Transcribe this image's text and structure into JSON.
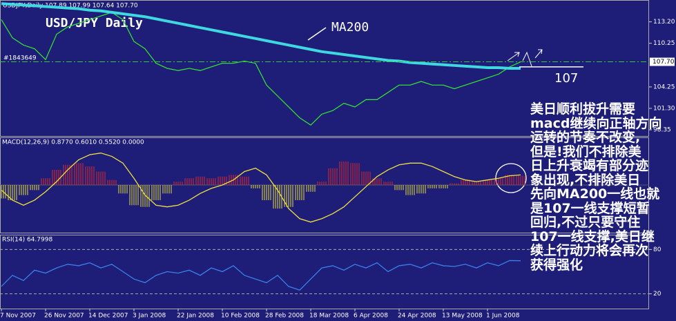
{
  "info": "USDJPY,Daily  107.89 107.99 107.64 107.70",
  "order_label": "#1843649",
  "commentary": [
    "美日顺利拔升需要",
    "macd继续向正轴方向",
    "运转的节奏不改变,",
    "但是!我们不排除美",
    "日上升衰竭有部分迹",
    "象出现,不排除美日",
    "先向MA200一线也就",
    "是107一线支撑短暂",
    "回归,不过只要守住",
    "107一线支撑,美日继",
    "续上行动力将会再次",
    "获得强化"
  ],
  "chart_data": [
    {
      "type": "line",
      "title": "USD/JPY Daily",
      "categories": [
        "7 Nov 2007",
        null,
        null,
        null,
        "26 Nov 2007",
        null,
        null,
        null,
        "14 Dec 2007",
        null,
        null,
        null,
        "3 Jan 2008",
        null,
        null,
        null,
        "22 Jan 2008",
        null,
        null,
        null,
        "10 Feb 2008",
        null,
        null,
        null,
        "28 Feb 2008",
        null,
        null,
        null,
        "18 Mar 2008",
        null,
        null,
        null,
        "6 Apr 2008",
        null,
        null,
        null,
        "24 Apr 2008",
        null,
        null,
        null,
        "13 May 2008",
        null,
        null,
        null,
        "1 Jun 2008",
        null,
        null,
        null
      ],
      "series": [
        {
          "color": "#33dd33",
          "values": [
            113.5,
            111,
            110,
            109.5,
            108,
            111.5,
            112.5,
            113,
            113.5,
            114,
            114.5,
            113.5,
            110.5,
            109.5,
            107.5,
            106.8,
            106.5,
            106.8,
            106.5,
            107,
            107.5,
            107.5,
            107.8,
            107.5,
            104.5,
            103,
            101.5,
            100,
            99,
            100.5,
            101,
            102,
            101.5,
            102.5,
            102.5,
            103.5,
            104.5,
            104.5,
            105,
            104.5,
            104.5,
            104,
            104.5,
            105,
            105.5,
            106,
            107,
            107.7
          ]
        },
        {
          "name": "MA200",
          "color": "#3fd8e0",
          "values": [
            115.7,
            115.6,
            115.5,
            115.4,
            115.3,
            115.2,
            115.1,
            115.0,
            114.8,
            114.7,
            114.5,
            114.3,
            114.1,
            113.9,
            113.6,
            113.3,
            113.0,
            112.7,
            112.4,
            112.1,
            111.8,
            111.5,
            111.2,
            110.9,
            110.6,
            110.3,
            110.0,
            109.7,
            109.4,
            109.1,
            108.9,
            108.7,
            108.5,
            108.3,
            108.1,
            107.9,
            107.8,
            107.6,
            107.5,
            107.4,
            107.3,
            107.2,
            107.1,
            107.0,
            106.9,
            106.9,
            106.8,
            106.8
          ]
        }
      ],
      "ylim": [
        97.5,
        116.2
      ],
      "yticks": [
        {
          "value": 113.2,
          "label": "113.20"
        },
        {
          "value": 110.25,
          "label": "110.25"
        },
        {
          "value": 104.25,
          "label": "104.25"
        },
        {
          "value": 101.3,
          "label": "101.30"
        },
        {
          "value": 98.35,
          "label": "98.35"
        }
      ],
      "current_price": {
        "value": 107.7,
        "label": "107.70"
      },
      "support_level": 107
    },
    {
      "type": "bar",
      "title": "MACD(12,26,9) 0.8770 0.6010 0.5520 0.0000",
      "color_up": "#e02828",
      "color_down": "#e8e030",
      "series": [
        {
          "values": [
            -0.8,
            -0.9,
            -0.6,
            -0.3,
            0.4,
            0.9,
            1.2,
            1.3,
            1.1,
            0.8,
            0.3,
            -0.5,
            -1.2,
            -1.3,
            -0.9,
            -0.5,
            0.2,
            0.4,
            0.5,
            0.4,
            0.5,
            0.6,
            0.5,
            -0.2,
            -0.9,
            -1.4,
            -1.3,
            -0.9,
            -0.4,
            0.2,
            1.0,
            1.4,
            1.3,
            0.8,
            0.4,
            0.2,
            -0.3,
            -0.6,
            -0.5,
            -0.2,
            -0.2,
            0.1,
            0.3,
            0.2,
            0.3,
            0.4,
            0.6,
            0.55
          ]
        },
        {
          "type": "line",
          "color": "#f0e040",
          "values": [
            -0.3,
            -0.9,
            -1.2,
            -0.9,
            -0.4,
            0.2,
            0.9,
            1.5,
            1.8,
            1.9,
            1.7,
            1.3,
            0.4,
            -0.6,
            -1.2,
            -1.3,
            -1.2,
            -0.9,
            -0.5,
            -0.2,
            0.0,
            0.3,
            0.8,
            1.0,
            0.6,
            -0.3,
            -1.4,
            -2.0,
            -2.2,
            -2.0,
            -1.7,
            -1.3,
            -0.7,
            -0.1,
            0.5,
            0.9,
            1.2,
            1.3,
            1.3,
            1.1,
            0.8,
            0.5,
            0.3,
            0.2,
            0.3,
            0.4,
            0.55,
            0.6
          ]
        }
      ],
      "ylim": [
        -2.83,
        2.83
      ]
    },
    {
      "type": "line",
      "title": "RSI(14) 64.7998",
      "series": [
        {
          "color": "#3a80e8",
          "values": [
            30,
            45,
            38,
            52,
            48,
            55,
            60,
            58,
            62,
            55,
            60,
            50,
            40,
            35,
            45,
            50,
            48,
            52,
            45,
            55,
            50,
            58,
            45,
            40,
            35,
            45,
            30,
            25,
            40,
            55,
            58,
            52,
            60,
            55,
            62,
            50,
            58,
            60,
            55,
            62,
            58,
            57,
            60,
            55,
            62,
            58,
            65,
            64.8
          ]
        }
      ],
      "ylim": [
        0,
        100
      ],
      "yticks": [
        20,
        80
      ],
      "grid": true
    }
  ]
}
